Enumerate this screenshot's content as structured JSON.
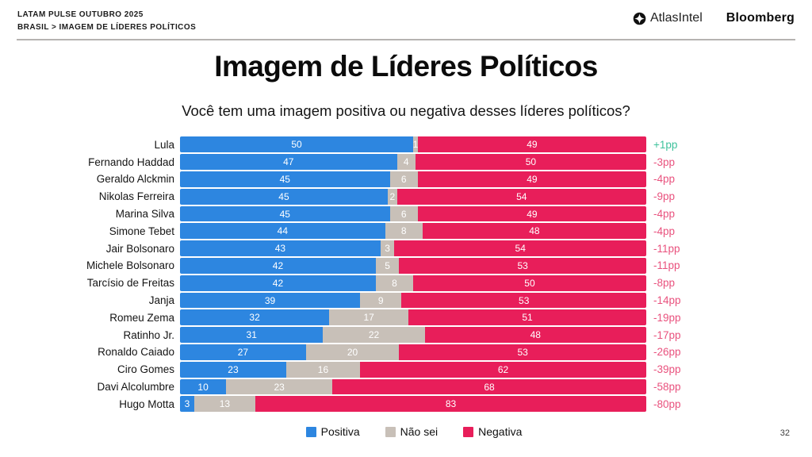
{
  "header": {
    "kicker_line1": "LATAM PULSE OUTUBRO 2025",
    "kicker_line2": "BRASIL > IMAGEM DE LÍDERES POLÍTICOS",
    "logos": {
      "atlasintel": "AtlasIntel",
      "bloomberg": "Bloomberg"
    }
  },
  "title": "Imagem de Líderes Políticos",
  "subtitle": "Você tem uma imagem positiva ou negativa desses líderes políticos?",
  "page_number": "32",
  "colors": {
    "positive": "#2D86E0",
    "neutral": "#C8C0B8",
    "negative": "#E81E5A",
    "change_positive": "#3FC29C",
    "change_negative": "#E9527E"
  },
  "chart_data": {
    "type": "bar",
    "orientation": "horizontal",
    "stacked": true,
    "unit": "%",
    "xlim": [
      0,
      100
    ],
    "grid": false,
    "legend_position": "bottom",
    "title": "Imagem de Líderes Políticos",
    "subtitle": "Você tem uma imagem positiva ou negativa desses líderes políticos?",
    "categories": [
      "Lula",
      "Fernando Haddad",
      "Geraldo Alckmin",
      "Nikolas Ferreira",
      "Marina Silva",
      "Simone Tebet",
      "Jair Bolsonaro",
      "Michele Bolsonaro",
      "Tarcísio de Freitas",
      "Janja",
      "Romeu Zema",
      "Ratinho Jr.",
      "Ronaldo Caiado",
      "Ciro Gomes",
      "Davi Alcolumbre",
      "Hugo Motta"
    ],
    "series": [
      {
        "name": "Positiva",
        "color": "#2D86E0",
        "values": [
          50,
          47,
          45,
          45,
          45,
          44,
          43,
          42,
          42,
          39,
          32,
          31,
          27,
          23,
          10,
          3
        ]
      },
      {
        "name": "Não sei",
        "color": "#C8C0B8",
        "values": [
          1,
          4,
          6,
          2,
          6,
          8,
          3,
          5,
          8,
          9,
          17,
          22,
          20,
          16,
          23,
          13
        ]
      },
      {
        "name": "Negativa",
        "color": "#E81E5A",
        "values": [
          49,
          50,
          49,
          54,
          49,
          48,
          54,
          53,
          50,
          53,
          51,
          48,
          53,
          62,
          68,
          83
        ]
      }
    ],
    "change_labels": [
      "+1pp",
      "-3pp",
      "-4pp",
      "-9pp",
      "-4pp",
      "-4pp",
      "-11pp",
      "-11pp",
      "-8pp",
      "-14pp",
      "-19pp",
      "-17pp",
      "-26pp",
      "-39pp",
      "-58pp",
      "-80pp"
    ]
  }
}
